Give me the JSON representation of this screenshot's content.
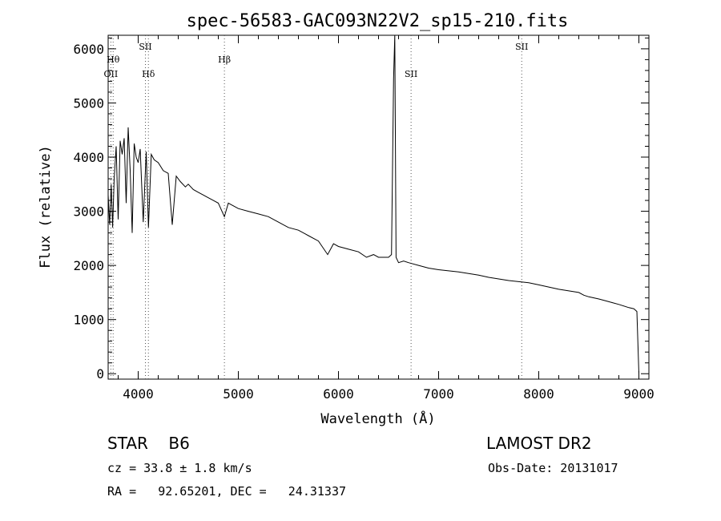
{
  "chart_data": {
    "type": "line",
    "title": "spec-56583-GAC093N22V2_sp15-210.fits",
    "xlabel": "Wavelength (Å)",
    "ylabel": "Flux (relative)",
    "xlim": [
      3700,
      9100
    ],
    "ylim": [
      -100,
      6250
    ],
    "x_ticks": [
      4000,
      5000,
      6000,
      7000,
      8000,
      9000
    ],
    "y_ticks": [
      0,
      1000,
      2000,
      3000,
      4000,
      5000,
      6000
    ],
    "grid": false,
    "series": [
      {
        "x": [
          3700,
          3715,
          3730,
          3745,
          3760,
          3780,
          3800,
          3820,
          3840,
          3860,
          3880,
          3900,
          3920,
          3940,
          3960,
          3980,
          4000,
          4020,
          4050,
          4080,
          4102,
          4130,
          4160,
          4200,
          4250,
          4300,
          4340,
          4380,
          4420,
          4471,
          4500,
          4550,
          4600,
          4650,
          4700,
          4750,
          4800,
          4861,
          4900,
          4950,
          5000,
          5100,
          5200,
          5300,
          5400,
          5500,
          5600,
          5700,
          5800,
          5892,
          5950,
          6000,
          6100,
          6200,
          6280,
          6350,
          6400,
          6450,
          6500,
          6530,
          6550,
          6562,
          6575,
          6600,
          6650,
          6700,
          6800,
          6900,
          7000,
          7100,
          7200,
          7300,
          7400,
          7500,
          7600,
          7700,
          7800,
          7900,
          8000,
          8100,
          8200,
          8300,
          8400,
          8450,
          8500,
          8600,
          8700,
          8800,
          8900,
          8950,
          8980,
          9000
        ],
        "y": [
          3300,
          2750,
          3500,
          2700,
          3600,
          4200,
          2850,
          4300,
          4050,
          4350,
          3150,
          4550,
          3750,
          2600,
          4250,
          4000,
          3900,
          4150,
          2800,
          4100,
          2700,
          4050,
          3950,
          3900,
          3750,
          3700,
          2750,
          3650,
          3550,
          3450,
          3500,
          3400,
          3350,
          3300,
          3250,
          3200,
          3150,
          2900,
          3150,
          3100,
          3050,
          3000,
          2950,
          2900,
          2800,
          2700,
          2650,
          2550,
          2450,
          2200,
          2400,
          2350,
          2300,
          2250,
          2150,
          2200,
          2150,
          2150,
          2150,
          2200,
          5450,
          6250,
          2150,
          2050,
          2080,
          2050,
          2000,
          1950,
          1920,
          1900,
          1880,
          1850,
          1820,
          1780,
          1750,
          1720,
          1700,
          1680,
          1640,
          1600,
          1560,
          1530,
          1500,
          1450,
          1420,
          1380,
          1330,
          1280,
          1220,
          1200,
          1150,
          0
        ]
      }
    ],
    "lines": [
      {
        "wavelength": 3727,
        "label": "OII",
        "row": 3
      },
      {
        "wavelength": 3750,
        "label": "Hθ",
        "row": 2
      },
      {
        "wavelength": 4072,
        "label": "SII",
        "row": 1
      },
      {
        "wavelength": 4102,
        "label": "Hδ",
        "row": 3
      },
      {
        "wavelength": 4861,
        "label": "Hβ",
        "row": 2
      },
      {
        "wavelength": 6725,
        "label": "SII",
        "row": 3
      },
      {
        "wavelength": 7830,
        "label": "SII",
        "row": 1
      }
    ]
  },
  "info": {
    "class_label": "STAR    B6",
    "survey": "LAMOST DR2",
    "cz": "cz = 33.8 ± 1.8 km/s",
    "obs_date": "Obs-Date: 20131017",
    "radec": "RA =   92.65201, DEC =   24.31337"
  }
}
